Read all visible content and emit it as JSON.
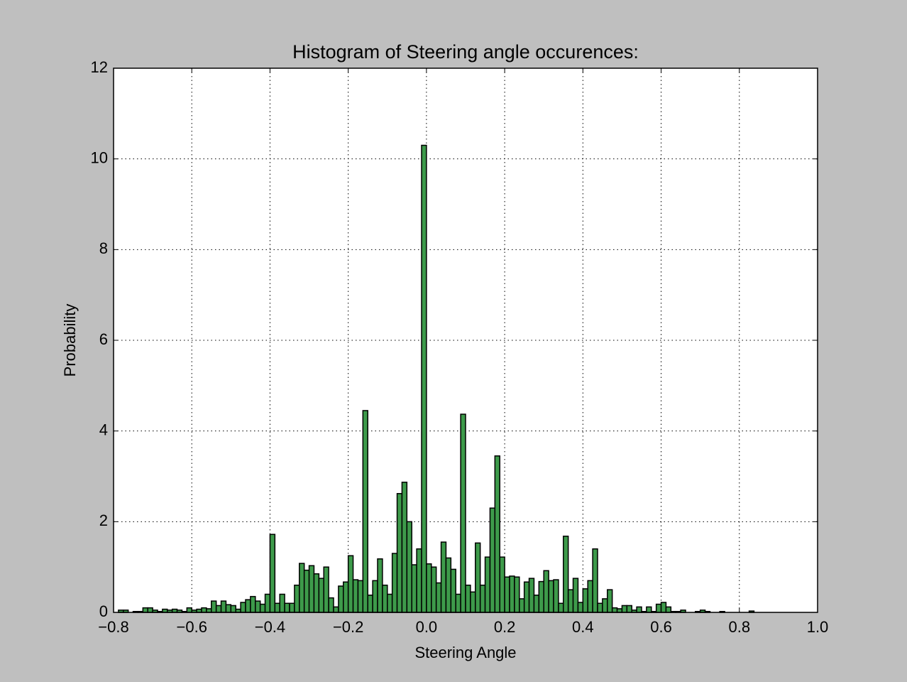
{
  "chart_data": {
    "type": "histogram",
    "title": "Histogram of Steering angle occurences:",
    "x_label": "Steering Angle",
    "y_label": "Probability",
    "bins": [
      -0.7875,
      -0.775,
      -0.7625,
      -0.75,
      -0.7375,
      -0.725,
      -0.7125,
      -0.7,
      -0.6875,
      -0.675,
      -0.6625,
      -0.65,
      -0.6375,
      -0.625,
      -0.6125,
      -0.6,
      -0.5875,
      -0.575,
      -0.5625,
      -0.55,
      -0.5375,
      -0.525,
      -0.5125,
      -0.5,
      -0.4875,
      -0.475,
      -0.4625,
      -0.45,
      -0.4375,
      -0.425,
      -0.4125,
      -0.4,
      -0.3875,
      -0.375,
      -0.3625,
      -0.35,
      -0.3375,
      -0.325,
      -0.3125,
      -0.3,
      -0.2875,
      -0.275,
      -0.2625,
      -0.25,
      -0.2375,
      -0.225,
      -0.2125,
      -0.2,
      -0.1875,
      -0.175,
      -0.1625,
      -0.15,
      -0.1375,
      -0.125,
      -0.1125,
      -0.1,
      -0.0875,
      -0.075,
      -0.0625,
      -0.05,
      -0.0375,
      -0.025,
      -0.0125,
      0,
      0.0125,
      0.025,
      0.0375,
      0.05,
      0.0625,
      0.075,
      0.0875,
      0.1,
      0.1125,
      0.125,
      0.1375,
      0.15,
      0.1625,
      0.175,
      0.1875,
      0.2,
      0.2125,
      0.225,
      0.2375,
      0.25,
      0.2625,
      0.275,
      0.2875,
      0.3,
      0.3125,
      0.325,
      0.3375,
      0.35,
      0.3625,
      0.375,
      0.3875,
      0.4,
      0.4125,
      0.425,
      0.4375,
      0.45,
      0.4625,
      0.475,
      0.4875,
      0.5,
      0.5125,
      0.525,
      0.5375,
      0.55,
      0.5625,
      0.575,
      0.5875,
      0.6,
      0.6125,
      0.625,
      0.6375,
      0.65,
      0.6625,
      0.675,
      0.6875,
      0.7,
      0.7125,
      0.725,
      0.7375,
      0.75,
      0.7625,
      0.775,
      0.7875,
      0.8,
      0.8125,
      0.825,
      0.8375
    ],
    "values": [
      0.05,
      0.05,
      0,
      0.02,
      0.02,
      0.1,
      0.1,
      0.05,
      0.02,
      0.07,
      0.05,
      0.07,
      0.05,
      0.02,
      0.1,
      0.05,
      0.07,
      0.1,
      0.08,
      0.25,
      0.15,
      0.25,
      0.17,
      0.15,
      0.07,
      0.22,
      0.28,
      0.35,
      0.25,
      0.18,
      0.4,
      1.72,
      0.2,
      0.4,
      0.2,
      0.2,
      0.6,
      1.08,
      0.93,
      1.03,
      0.85,
      0.75,
      1.0,
      0.32,
      0.12,
      0.58,
      0.67,
      1.25,
      0.72,
      0.7,
      4.45,
      0.38,
      0.7,
      1.18,
      0.6,
      0.4,
      1.3,
      2.62,
      2.87,
      2.0,
      1.05,
      1.4,
      10.3,
      1.07,
      1.0,
      0.65,
      1.55,
      1.2,
      0.95,
      0.4,
      4.37,
      0.6,
      0.45,
      1.53,
      0.6,
      1.22,
      2.3,
      3.45,
      1.22,
      0.78,
      0.8,
      0.78,
      0.3,
      0.67,
      0.75,
      0.38,
      0.68,
      0.92,
      0.7,
      0.72,
      0.2,
      1.68,
      0.5,
      0.75,
      0.22,
      0.52,
      0.7,
      1.4,
      0.2,
      0.3,
      0.5,
      0.1,
      0.08,
      0.15,
      0.15,
      0.05,
      0.12,
      0.02,
      0.12,
      0.02,
      0.18,
      0.22,
      0.12,
      0.02,
      0.02,
      0.05,
      0,
      0,
      0.02,
      0.05,
      0.02,
      0,
      0,
      0.02,
      0,
      0,
      0,
      0,
      0,
      0.03
    ],
    "color": "#3d9a4a",
    "edge_color": "#000000",
    "xlim": [
      -0.8,
      1.0
    ],
    "xticks": [
      {
        "value": -0.8,
        "label": "−0.8"
      },
      {
        "value": -0.6,
        "label": "−0.6"
      },
      {
        "value": -0.4,
        "label": "−0.4"
      },
      {
        "value": -0.2,
        "label": "−0.2"
      },
      {
        "value": 0,
        "label": "0.0"
      },
      {
        "value": 0.2,
        "label": "0.2"
      },
      {
        "value": 0.4,
        "label": "0.4"
      },
      {
        "value": 0.6,
        "label": "0.6"
      },
      {
        "value": 0.8,
        "label": "0.8"
      },
      {
        "value": 1.0,
        "label": "1.0"
      }
    ],
    "ylim": [
      0,
      12
    ],
    "yticks": [
      0,
      2,
      4,
      6,
      8,
      10,
      12
    ],
    "grid": true
  }
}
